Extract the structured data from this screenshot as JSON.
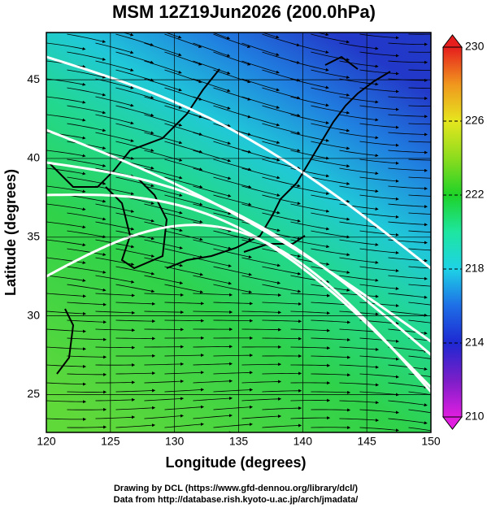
{
  "chart_data": {
    "type": "map",
    "title": "MSM 12Z19Jun2026 (200.0hPa)",
    "x_label": "Longitude (degrees)",
    "y_label": "Latitude  (degrees)",
    "xlim": [
      120,
      150
    ],
    "xticks": [
      120,
      125,
      130,
      135,
      140,
      145,
      150
    ],
    "ylim": [
      22.6,
      48
    ],
    "yticks": [
      25,
      30,
      35,
      40,
      45
    ],
    "grid": true,
    "colorbar": {
      "lim": [
        210,
        230
      ],
      "ticks": [
        210,
        214,
        218,
        222,
        226,
        230
      ],
      "colors": [
        "#e01ee0",
        "#7a1ec8",
        "#1e28d2",
        "#1e6ee6",
        "#1ed2e6",
        "#1ee6a0",
        "#1ed228",
        "#8cdc1e",
        "#e6e61e",
        "#f0961e",
        "#e61e1e"
      ]
    },
    "footer": [
      "Drawing by DCL (https://www.gfd-dennou.org/library/dcl/)",
      "Data from http://database.rish.kyoto-u.ac.jp/arch/jmadata/"
    ]
  }
}
